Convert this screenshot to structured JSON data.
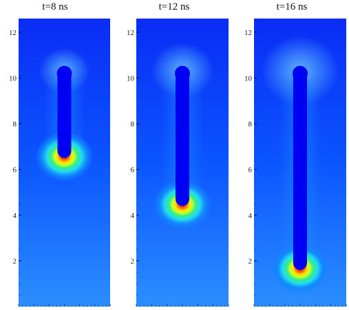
{
  "chart_data": [
    {
      "type": "heatmap",
      "title": "t=8 ns",
      "ylim": [
        0,
        12.6
      ],
      "yticks": [
        2,
        4,
        6,
        8,
        10,
        12
      ],
      "channel_top": 10.2,
      "channel_tip": 6.5,
      "colormap": [
        "#0000ff",
        "#0044ff",
        "#1188ff",
        "#22ddee",
        "#33ee88",
        "#ccff22",
        "#ffdd00",
        "#ff6600",
        "#ee0000"
      ]
    },
    {
      "type": "heatmap",
      "title": "t=12 ns",
      "ylim": [
        0,
        12.6
      ],
      "yticks": [
        2,
        4,
        6,
        8,
        10,
        12
      ],
      "channel_top": 10.2,
      "channel_tip": 4.4,
      "colormap": [
        "#0000ff",
        "#0044ff",
        "#1188ff",
        "#22ddee",
        "#33ee88",
        "#ccff22",
        "#ffdd00",
        "#ff6600",
        "#ee0000"
      ]
    },
    {
      "type": "heatmap",
      "title": "t=16 ns",
      "ylim": [
        0,
        12.6
      ],
      "yticks": [
        2,
        4,
        6,
        8,
        10,
        12
      ],
      "channel_top": 10.2,
      "channel_tip": 1.6,
      "colormap": [
        "#0000ff",
        "#0044ff",
        "#1188ff",
        "#22ddee",
        "#33ee88",
        "#ccff22",
        "#ffdd00",
        "#ff6600",
        "#ee0000"
      ]
    }
  ]
}
